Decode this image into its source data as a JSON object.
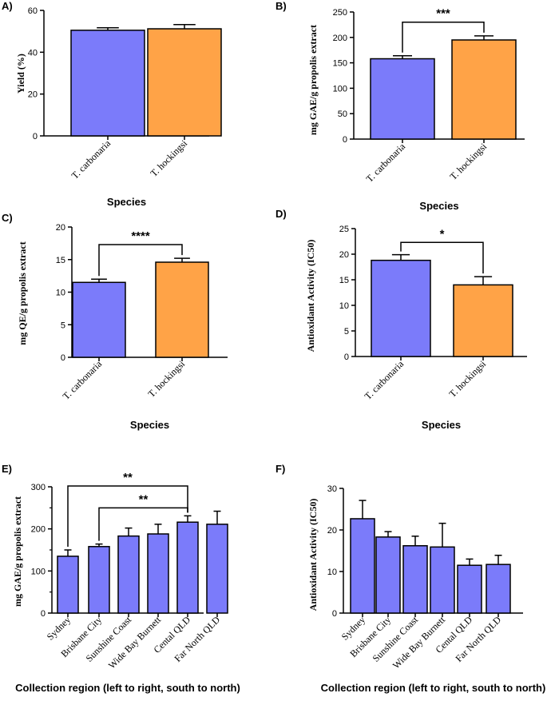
{
  "colors": {
    "purple": "#7b7bfa",
    "orange": "#ffa347",
    "stroke": "#000000"
  },
  "chart_data": [
    {
      "panel": "A)",
      "type": "bar",
      "categories": [
        "T. carbonaria",
        "T. hockingsi"
      ],
      "values": [
        50.5,
        51.2
      ],
      "errors": [
        1.2,
        2.0
      ],
      "bar_colors": [
        "#7b7bfa",
        "#ffa347"
      ],
      "ylabel": "Yield (%)",
      "xlabel": "Species",
      "ylim": [
        0,
        60
      ],
      "yticks": [
        "0",
        "20",
        "40",
        "60"
      ],
      "brackets": []
    },
    {
      "panel": "B)",
      "type": "bar",
      "categories": [
        "T. carbonaria",
        "T. hockingsi"
      ],
      "values": [
        158,
        195
      ],
      "errors": [
        6,
        8
      ],
      "bar_colors": [
        "#7b7bfa",
        "#ffa347"
      ],
      "ylabel": "mg GAE/g propolis extract",
      "xlabel": "Species",
      "ylim": [
        0,
        250
      ],
      "yticks": [
        "0",
        "50",
        "100",
        "150",
        "200",
        "250"
      ],
      "brackets": [
        {
          "from": 0,
          "to": 1,
          "y": 230,
          "label": "***"
        }
      ]
    },
    {
      "panel": "C)",
      "type": "bar",
      "categories": [
        "T. carbonaria",
        "T. hockingsi"
      ],
      "values": [
        11.5,
        14.6
      ],
      "errors": [
        0.5,
        0.6
      ],
      "bar_colors": [
        "#7b7bfa",
        "#ffa347"
      ],
      "ylabel": "mg QE/g propolis extract",
      "xlabel": "Species",
      "ylim": [
        0,
        20
      ],
      "yticks": [
        "0",
        "5",
        "10",
        "15",
        "20"
      ],
      "brackets": [
        {
          "from": 0,
          "to": 1,
          "y": 17.3,
          "label": "****"
        }
      ]
    },
    {
      "panel": "D)",
      "type": "bar",
      "categories": [
        "T. carbonaria",
        "T. hockingsi"
      ],
      "values": [
        18.8,
        14.0
      ],
      "errors": [
        1.1,
        1.6
      ],
      "bar_colors": [
        "#7b7bfa",
        "#ffa347"
      ],
      "ylabel": "Antioxidant Activity (IC50)",
      "xlabel": "Species",
      "ylim": [
        0,
        25
      ],
      "yticks": [
        "0",
        "5",
        "10",
        "15",
        "20",
        "25"
      ],
      "brackets": [
        {
          "from": 0,
          "to": 1,
          "y": 22.3,
          "label": "*"
        }
      ]
    },
    {
      "panel": "E)",
      "type": "bar",
      "categories": [
        "Sydney",
        "Brisbane City",
        "Sunshine Coast",
        "Wide Bay Burnett",
        "Cental QLD",
        "Far North QLD"
      ],
      "values": [
        135,
        158,
        183,
        188,
        216,
        211
      ],
      "errors": [
        15,
        6,
        19,
        23,
        15,
        31
      ],
      "bar_colors": [
        "#7b7bfa",
        "#7b7bfa",
        "#7b7bfa",
        "#7b7bfa",
        "#7b7bfa",
        "#7b7bfa"
      ],
      "ylabel": "mg GAE/g propolis extract",
      "xlabel": "Collection region (left to right, south to north)",
      "ylim": [
        0,
        300
      ],
      "yticks": [
        "0",
        "100",
        "200",
        "300"
      ],
      "brackets": [
        {
          "from": 0,
          "to": 4,
          "y": 302,
          "label": "**"
        },
        {
          "from": 1,
          "to": 4,
          "y": 250,
          "label": "**"
        }
      ]
    },
    {
      "panel": "F)",
      "type": "bar",
      "categories": [
        "Sydney",
        "Brisbane City",
        "Sunshine Coast",
        "Wide Bay Burnett",
        "Cental QLD",
        "Far North QLD"
      ],
      "values": [
        22.7,
        18.3,
        16.2,
        15.9,
        11.5,
        11.7
      ],
      "errors": [
        4.4,
        1.3,
        2.3,
        5.7,
        1.5,
        2.2
      ],
      "bar_colors": [
        "#7b7bfa",
        "#7b7bfa",
        "#7b7bfa",
        "#7b7bfa",
        "#7b7bfa",
        "#7b7bfa"
      ],
      "ylabel": "Antioxidant Activity (IC50)",
      "xlabel": "Collection region (left to right, south to north)",
      "ylim": [
        0,
        30
      ],
      "yticks": [
        "0",
        "10",
        "20",
        "30"
      ],
      "brackets": []
    }
  ]
}
